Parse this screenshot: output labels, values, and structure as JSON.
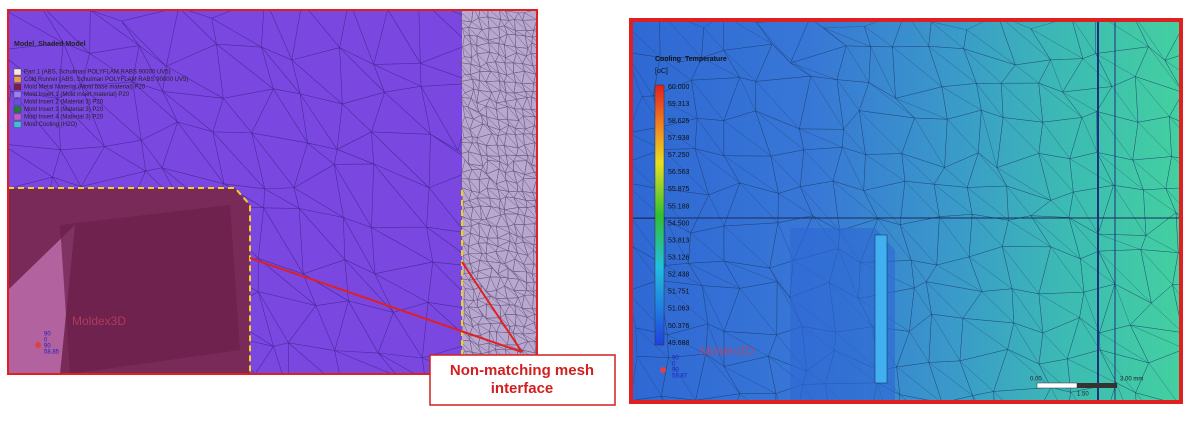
{
  "left_panel": {
    "title": "Model_Shaded Model",
    "legend": [
      {
        "label": "Part 1 (ABS, Schulman POLYFLAM RABS 90000 UV5)",
        "color": "#f3ecd0"
      },
      {
        "label": "Cold Runner (ABS, Schulman POLYFLAM RABS 90000 UV5)",
        "color": "#e8a040"
      },
      {
        "label": "Mold Metal Material (Mold base material) P20",
        "color": "#7a2048"
      },
      {
        "label": "Mold Insert 1 (Mold insert material) P20",
        "color": "#9a80f0"
      },
      {
        "label": "Mold Insert 2 (Material 3) P20",
        "color": "#6a50e0"
      },
      {
        "label": "Mold Insert 3 (Material 3) P20",
        "color": "#208030"
      },
      {
        "label": "Mold Insert 4 (Material 3) P20",
        "color": "#c060c0"
      },
      {
        "label": "Mold Cooling (H2O)",
        "color": "#40c0d0"
      }
    ],
    "logo": "Moldex3D",
    "axis_labels": [
      "90",
      "0",
      "90",
      "58.85"
    ]
  },
  "callout": "Non-matching mesh interface",
  "right_panel": {
    "title": "Cooling_Temperature",
    "unit": "[oC]",
    "scale_labels": [
      "60.000",
      "59.313",
      "58.625",
      "57.938",
      "57.250",
      "56.563",
      "55.875",
      "55.188",
      "54.500",
      "53.813",
      "53.126",
      "52.438",
      "51.751",
      "51.063",
      "50.376",
      "49.688"
    ],
    "logo": "Moldex3D",
    "axis_labels": [
      "90",
      "0",
      "90",
      "58.87"
    ],
    "scale_bar": [
      "0.00",
      "1.50",
      "3.00 mm"
    ]
  }
}
